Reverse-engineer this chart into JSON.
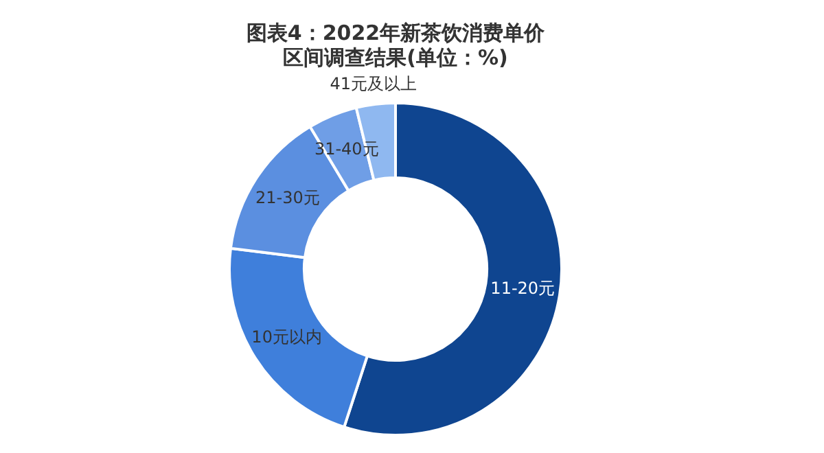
{
  "chart_data": {
    "type": "donut",
    "title": "图表4：2022年新茶饮消费单价区间调查结果(单位：%)",
    "categories": [
      "11-20元",
      "10元以内",
      "21-30元",
      "31-40元",
      "41元及以上"
    ],
    "values": [
      55,
      22,
      14.4,
      4.8,
      3.8
    ],
    "colors": [
      "#0f4590",
      "#3f7fdb",
      "#5b8fe0",
      "#6f9ee6",
      "#8fb8f0"
    ],
    "legend": false
  }
}
